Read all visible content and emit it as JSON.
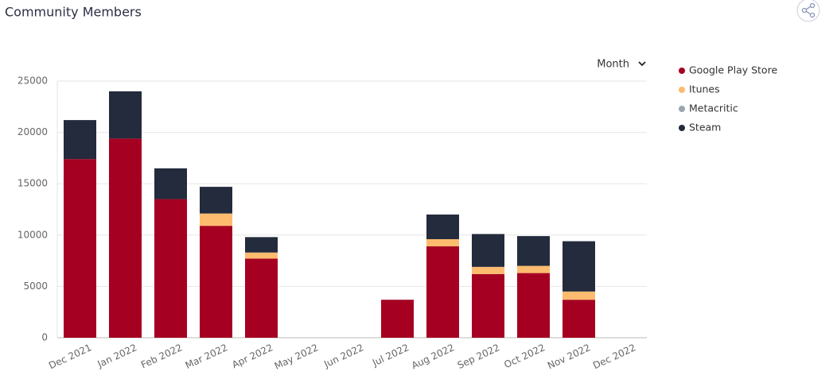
{
  "chart_data": {
    "type": "stacked_bar",
    "title": "Community Members",
    "dropdown_label": "Month",
    "categories": [
      "Dec 2021",
      "Jan 2022",
      "Feb 2022",
      "Mar 2022",
      "Apr 2022",
      "May 2022",
      "Jun 2022",
      "Jul 2022",
      "Aug 2022",
      "Sep 2022",
      "Oct 2022",
      "Nov 2022",
      "Dec 2022"
    ],
    "series": [
      {
        "name": "Google Play Store",
        "color": "#a50021",
        "values": [
          17400,
          19400,
          13500,
          10900,
          7700,
          0,
          0,
          3700,
          8900,
          6200,
          6300,
          3700,
          0
        ]
      },
      {
        "name": "Itunes",
        "color": "#fdbb6f",
        "values": [
          0,
          0,
          0,
          1200,
          600,
          0,
          0,
          0,
          700,
          700,
          700,
          800,
          0
        ]
      },
      {
        "name": "Metacritic",
        "color": "#9aa5ae",
        "values": [
          0,
          0,
          0,
          0,
          0,
          0,
          0,
          0,
          0,
          0,
          0,
          0,
          0
        ]
      },
      {
        "name": "Steam",
        "color": "#232b3c",
        "values": [
          3800,
          4600,
          3000,
          2600,
          1500,
          0,
          0,
          0,
          2400,
          3200,
          2900,
          4900,
          0
        ]
      }
    ],
    "ylim": [
      0,
      25000
    ],
    "yticks": [
      0,
      5000,
      10000,
      15000,
      20000,
      25000
    ],
    "grid": true,
    "legend": "right"
  }
}
